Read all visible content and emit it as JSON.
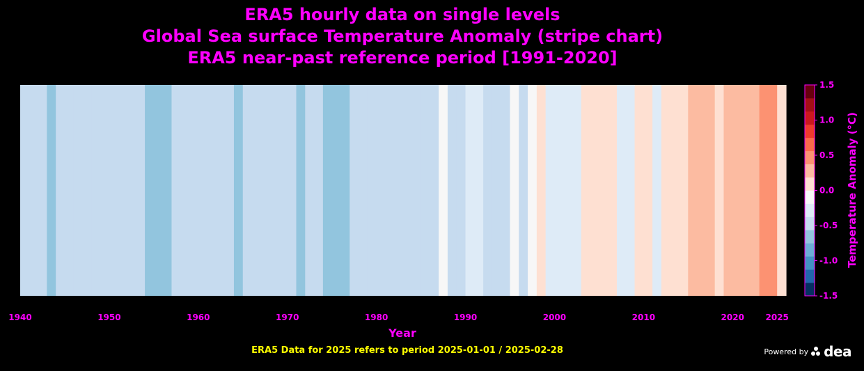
{
  "titles": [
    "ERA5 hourly data on single levels",
    "Global Sea surface Temperature Anomaly (stripe chart)",
    "ERA5 near-past reference period [1991-2020]"
  ],
  "footnote": "ERA5 Data for 2025 refers to period 2025-01-01 / 2025-02-28",
  "powered_by": {
    "label": "Powered by",
    "brand": "dea",
    "icon": "dea-logo-icon"
  },
  "colors": {
    "background": "#000000",
    "title": "#ff00ff",
    "footnote": "#ffff00",
    "powered": "#ffffff",
    "colormap": [
      "#053061",
      "#2166ac",
      "#4393c3",
      "#6baed6",
      "#92c5de",
      "#c6dbef",
      "#deebf7",
      "#f7f7f7",
      "#fee0d2",
      "#fcbba1",
      "#fc9272",
      "#fb6a4a",
      "#ef3b2c",
      "#cb181d",
      "#a50f15",
      "#67000d"
    ]
  },
  "chart_data": {
    "type": "heatmap",
    "xlabel": "Year",
    "colorbar_label": "Temperature Anomaly (°C)",
    "clim": [
      -1.5,
      1.5
    ],
    "colorbar_ticks": [
      "-1.5",
      "-1.0",
      "-0.5",
      "0.0",
      "0.5",
      "1.0",
      "1.5"
    ],
    "xlim": [
      1940,
      2026
    ],
    "x_ticks": [
      "1940",
      "1950",
      "1960",
      "1970",
      "1980",
      "1990",
      "2000",
      "2010",
      "2020",
      "2025"
    ],
    "years": [
      1940,
      1941,
      1942,
      1943,
      1944,
      1945,
      1946,
      1947,
      1948,
      1949,
      1950,
      1951,
      1952,
      1953,
      1954,
      1955,
      1956,
      1957,
      1958,
      1959,
      1960,
      1961,
      1962,
      1963,
      1964,
      1965,
      1966,
      1967,
      1968,
      1969,
      1970,
      1971,
      1972,
      1973,
      1974,
      1975,
      1976,
      1977,
      1978,
      1979,
      1980,
      1981,
      1982,
      1983,
      1984,
      1985,
      1986,
      1987,
      1988,
      1989,
      1990,
      1991,
      1992,
      1993,
      1994,
      1995,
      1996,
      1997,
      1998,
      1999,
      2000,
      2001,
      2002,
      2003,
      2004,
      2005,
      2006,
      2007,
      2008,
      2009,
      2010,
      2011,
      2012,
      2013,
      2014,
      2015,
      2016,
      2017,
      2018,
      2019,
      2020,
      2021,
      2022,
      2023,
      2024,
      2025
    ],
    "anomalies": [
      -0.4,
      -0.4,
      -0.4,
      -0.6,
      -0.4,
      -0.4,
      -0.4,
      -0.4,
      -0.4,
      -0.4,
      -0.4,
      -0.4,
      -0.4,
      -0.4,
      -0.6,
      -0.6,
      -0.6,
      -0.4,
      -0.4,
      -0.4,
      -0.4,
      -0.4,
      -0.4,
      -0.4,
      -0.6,
      -0.4,
      -0.4,
      -0.4,
      -0.4,
      -0.4,
      -0.4,
      -0.6,
      -0.4,
      -0.4,
      -0.6,
      -0.6,
      -0.6,
      -0.4,
      -0.4,
      -0.4,
      -0.4,
      -0.4,
      -0.4,
      -0.4,
      -0.4,
      -0.4,
      -0.4,
      -0.1,
      -0.4,
      -0.4,
      -0.2,
      -0.2,
      -0.4,
      -0.4,
      -0.4,
      -0.1,
      -0.4,
      -0.1,
      0.1,
      -0.2,
      -0.2,
      -0.2,
      -0.2,
      0.1,
      0.1,
      0.1,
      0.1,
      -0.2,
      -0.2,
      0.1,
      0.1,
      -0.2,
      0.1,
      0.1,
      0.1,
      0.3,
      0.3,
      0.3,
      0.1,
      0.3,
      0.3,
      0.3,
      0.3,
      0.5,
      0.5,
      0.1
    ]
  }
}
